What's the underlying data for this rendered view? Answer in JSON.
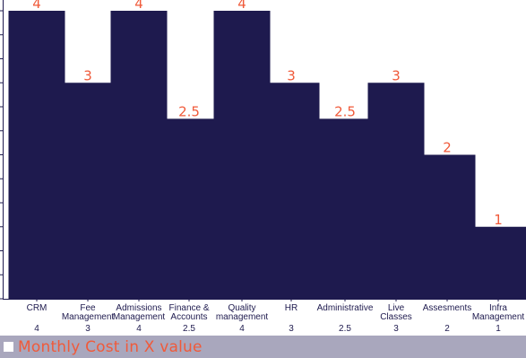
{
  "chart_data": {
    "type": "bar",
    "categories": [
      [
        "CRM"
      ],
      [
        "Fee",
        "Management"
      ],
      [
        "Admissions",
        "Management"
      ],
      [
        "Finance &",
        "Accounts"
      ],
      [
        "Quality",
        "management"
      ],
      [
        "HR"
      ],
      [
        "Administrative"
      ],
      [
        "Live",
        "Classes"
      ],
      [
        "Assesments"
      ],
      [
        "Infra",
        "Management"
      ]
    ],
    "series": [
      {
        "name": "Monthly Cost in X value",
        "values": [
          4,
          3,
          4,
          2.5,
          4,
          3,
          2.5,
          3,
          2,
          1
        ]
      }
    ],
    "value_labels": [
      "4",
      "3",
      "4",
      "2.5",
      "4",
      "3",
      "2.5",
      "3",
      "2",
      "1"
    ],
    "ylim": [
      0,
      4
    ],
    "grid": false,
    "legend": "bottom-left",
    "bar_color": "#1e1a4e",
    "label_color": "#f05a3a",
    "legend_band_color": "#a9a7bd"
  },
  "legend": {
    "label": "Monthly Cost in X value"
  }
}
